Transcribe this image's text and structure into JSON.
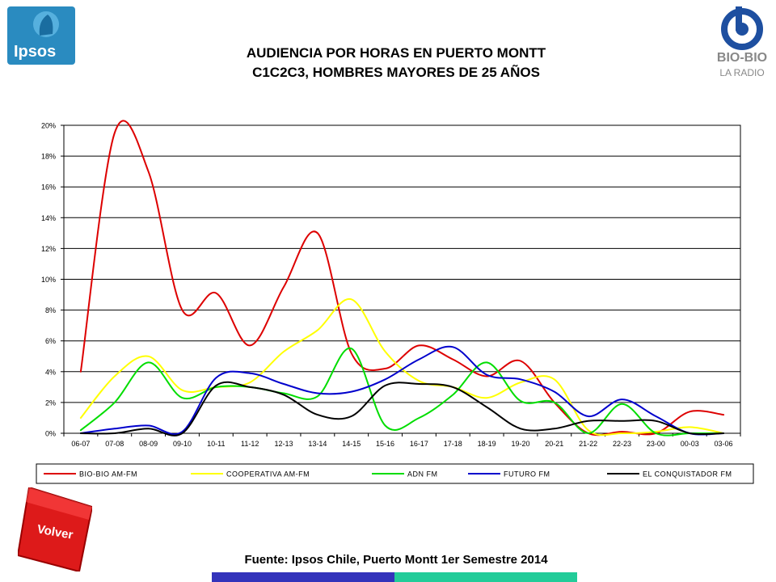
{
  "header": {
    "title_line1": "AUDIENCIA POR HORAS EN PUERTO MONTT",
    "title_line2": "C1C2C3, HOMBRES MAYORES DE 25 AÑOS"
  },
  "logos": {
    "ipsos": "Ipsos",
    "biobio_main": "BIO-BIO",
    "biobio_sub": "LA RADIO"
  },
  "volver_label": "Volver",
  "footer": {
    "source": "Fuente: Ipsos Chile, Puerto Montt 1er Semestre 2014"
  },
  "colors": {
    "ipsos_blue": "#2a8bc0",
    "biobio_blue": "#1e4fa0",
    "volver_red": "#dd1a1a",
    "bar_blue": "#3333bb",
    "bar_teal": "#22cc99"
  },
  "chart_data": {
    "type": "line",
    "title": "",
    "xlabel": "",
    "ylabel": "",
    "ylim": [
      0,
      20
    ],
    "y_ticks": [
      "0%",
      "2%",
      "4%",
      "6%",
      "8%",
      "10%",
      "12%",
      "14%",
      "16%",
      "18%",
      "20%"
    ],
    "grid": true,
    "legend_position": "bottom",
    "categories": [
      "06-07",
      "07-08",
      "08-09",
      "09-10",
      "10-11",
      "11-12",
      "12-13",
      "13-14",
      "14-15",
      "15-16",
      "16-17",
      "17-18",
      "18-19",
      "19-20",
      "20-21",
      "21-22",
      "22-23",
      "23-00",
      "00-03",
      "03-06"
    ],
    "series": [
      {
        "name": "BIO-BIO AM-FM",
        "color": "#dd0000",
        "values": [
          4.0,
          19.5,
          17.0,
          8.0,
          9.1,
          5.7,
          9.5,
          13.0,
          5.2,
          4.2,
          5.7,
          4.8,
          3.7,
          4.7,
          2.0,
          0.0,
          0.1,
          0.0,
          1.4,
          1.2
        ]
      },
      {
        "name": "COOPERATIVA AM-FM",
        "color": "#ffff00",
        "values": [
          1.0,
          3.7,
          5.0,
          2.8,
          3.0,
          3.3,
          5.3,
          6.7,
          8.7,
          5.3,
          3.4,
          3.0,
          2.3,
          3.3,
          3.5,
          0.2,
          0.0,
          0.1,
          0.4,
          0.0
        ]
      },
      {
        "name": "ADN FM",
        "color": "#00dd00",
        "values": [
          0.2,
          2.0,
          4.6,
          2.3,
          3.0,
          3.0,
          2.6,
          2.4,
          5.5,
          0.5,
          1.0,
          2.5,
          4.6,
          2.1,
          2.0,
          0.0,
          1.9,
          0.0,
          0.0,
          0.0
        ]
      },
      {
        "name": "FUTURO FM",
        "color": "#0000cc",
        "values": [
          0.0,
          0.3,
          0.5,
          0.1,
          3.6,
          3.9,
          3.2,
          2.6,
          2.7,
          3.5,
          4.8,
          5.6,
          3.8,
          3.5,
          2.7,
          1.1,
          2.2,
          1.1,
          0.0,
          0.0
        ]
      },
      {
        "name": "EL CONQUISTADOR FM",
        "color": "#000000",
        "values": [
          0.0,
          0.0,
          0.3,
          0.0,
          3.1,
          3.0,
          2.5,
          1.2,
          1.1,
          3.1,
          3.2,
          3.0,
          1.7,
          0.3,
          0.3,
          0.8,
          0.8,
          0.8,
          0.0,
          0.0
        ]
      }
    ]
  }
}
